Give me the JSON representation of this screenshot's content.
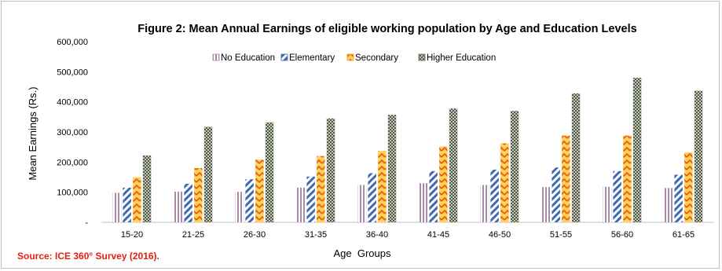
{
  "chart_data": {
    "type": "bar",
    "title": "Figure 2: Mean Annual Earnings of eligible working population by Age and Education Levels",
    "xlabel": "Age  Groups",
    "ylabel": "Mean Earnings (Rs.)",
    "categories": [
      "15-20",
      "21-25",
      "26-30",
      "31-35",
      "36-40",
      "41-45",
      "46-50",
      "51-55",
      "56-60",
      "61-65"
    ],
    "series": [
      {
        "name": "No Education",
        "values": [
          98000,
          102000,
          101000,
          115000,
          124000,
          130000,
          124000,
          117000,
          118000,
          114000
        ],
        "color": "#a98aa8",
        "pattern": "vertical-stripes"
      },
      {
        "name": "Elementary",
        "values": [
          115000,
          128000,
          143000,
          152000,
          163000,
          170000,
          175000,
          182000,
          170000,
          158000
        ],
        "color": "#3f6ab3",
        "pattern": "diagonal-stripes"
      },
      {
        "name": "Secondary",
        "values": [
          150000,
          180000,
          208000,
          220000,
          237000,
          252000,
          262000,
          288000,
          288000,
          232000
        ],
        "color": "#f29a22",
        "pattern": "zigzag"
      },
      {
        "name": "Higher Education",
        "values": [
          222000,
          317000,
          332000,
          345000,
          357000,
          378000,
          370000,
          428000,
          480000,
          437000
        ],
        "color": "#5b6151",
        "pattern": "checker"
      }
    ],
    "y_ticks": [
      "-",
      "100,000",
      "200,000",
      "300,000",
      "400,000",
      "500,000",
      "600,000"
    ],
    "ylim": [
      0,
      600000
    ],
    "grid": false,
    "legend_position": "top"
  },
  "source_note": "Source: ICE 360° Survey (2016)."
}
